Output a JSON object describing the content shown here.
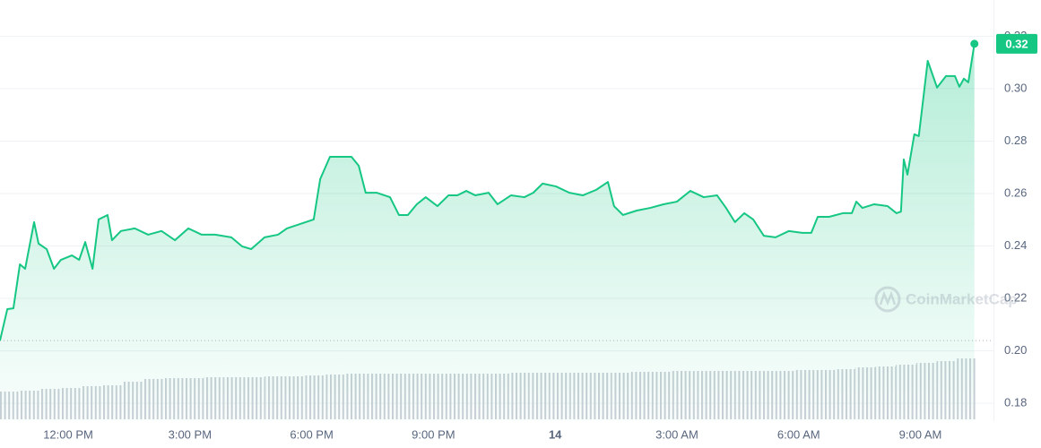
{
  "chart_data": {
    "type": "line",
    "color": "#16c784",
    "grid": true,
    "watermark": "CoinMarketCap",
    "xlim": [
      10.32,
      34.8
    ],
    "ylim": [
      0.1732,
      0.3338
    ],
    "xticks": [
      {
        "value": 12,
        "label": "12:00 PM"
      },
      {
        "value": 15,
        "label": "3:00 PM"
      },
      {
        "value": 18,
        "label": "6:00 PM"
      },
      {
        "value": 21,
        "label": "9:00 PM"
      },
      {
        "value": 24,
        "label": "14"
      },
      {
        "value": 27,
        "label": "3:00 AM"
      },
      {
        "value": 30,
        "label": "6:00 AM"
      },
      {
        "value": 33,
        "label": "9:00 AM"
      }
    ],
    "yticks": [
      0.18,
      {
        "value": 0.2,
        "label": "0.20"
      },
      0.22,
      0.24,
      0.26,
      0.28,
      {
        "value": 0.3,
        "label": "0.30"
      },
      0.32
    ],
    "series": [
      {
        "color": "#16c784",
        "x": [
          10.32,
          10.5,
          10.65,
          10.81,
          10.94,
          11.16,
          11.27,
          11.47,
          11.65,
          11.82,
          12.09,
          12.27,
          12.42,
          12.6,
          12.75,
          12.97,
          13.08,
          13.3,
          13.64,
          13.97,
          14.3,
          14.63,
          14.96,
          15.29,
          15.62,
          16.02,
          16.29,
          16.51,
          16.84,
          17.17,
          17.39,
          17.72,
          18.05,
          18.21,
          18.45,
          18.67,
          18.98,
          19.16,
          19.33,
          19.6,
          19.93,
          20.15,
          20.37,
          20.59,
          20.81,
          21.1,
          21.37,
          21.59,
          21.81,
          22.03,
          22.36,
          22.58,
          22.91,
          23.24,
          23.46,
          23.69,
          24.02,
          24.35,
          24.68,
          25.01,
          25.3,
          25.45,
          25.67,
          26.01,
          26.34,
          26.67,
          27.0,
          27.33,
          27.66,
          27.99,
          28.21,
          28.43,
          28.66,
          28.88,
          29.14,
          29.43,
          29.76,
          30.09,
          30.31,
          30.47,
          30.75,
          31.09,
          31.31,
          31.42,
          31.57,
          31.86,
          32.19,
          32.41,
          32.52,
          32.59,
          32.68,
          32.85,
          32.96,
          33.18,
          33.41,
          33.63,
          33.85,
          33.96,
          34.07,
          34.18,
          34.33
        ],
        "values": [
          0.2039,
          0.2159,
          0.2162,
          0.233,
          0.2313,
          0.2491,
          0.2409,
          0.2388,
          0.2313,
          0.2347,
          0.2364,
          0.2347,
          0.2415,
          0.2313,
          0.2501,
          0.2518,
          0.2422,
          0.2457,
          0.2467,
          0.2443,
          0.2457,
          0.2422,
          0.2467,
          0.2443,
          0.2443,
          0.2433,
          0.2398,
          0.2388,
          0.2433,
          0.2443,
          0.2467,
          0.2484,
          0.2501,
          0.2655,
          0.274,
          0.274,
          0.274,
          0.2706,
          0.2603,
          0.2603,
          0.2586,
          0.2518,
          0.2518,
          0.2559,
          0.2586,
          0.2552,
          0.2593,
          0.2593,
          0.261,
          0.2593,
          0.2603,
          0.2559,
          0.2593,
          0.2586,
          0.2603,
          0.2638,
          0.2627,
          0.2603,
          0.2593,
          0.2614,
          0.2644,
          0.2552,
          0.2518,
          0.2535,
          0.2545,
          0.2559,
          0.2569,
          0.261,
          0.2586,
          0.2593,
          0.2545,
          0.2491,
          0.2525,
          0.2501,
          0.2439,
          0.2433,
          0.2457,
          0.245,
          0.245,
          0.2511,
          0.2511,
          0.2525,
          0.2525,
          0.2569,
          0.2545,
          0.2559,
          0.2552,
          0.2525,
          0.2531,
          0.273,
          0.2672,
          0.2826,
          0.2819,
          0.3106,
          0.3004,
          0.3048,
          0.3048,
          0.3007,
          0.3038,
          0.3024,
          0.3171
        ],
        "value_labels": [
          null,
          null,
          null,
          null,
          null,
          null,
          null,
          null,
          null,
          null,
          null,
          null,
          null,
          null,
          null,
          null,
          null,
          null,
          null,
          null,
          null,
          null,
          null,
          null,
          null,
          null,
          null,
          null,
          null,
          null,
          null,
          null,
          null,
          null,
          null,
          null,
          null,
          null,
          null,
          null,
          null,
          null,
          null,
          null,
          null,
          null,
          null,
          null,
          null,
          null,
          null,
          null,
          null,
          null,
          null,
          null,
          null,
          null,
          null,
          null,
          null,
          null,
          null,
          null,
          null,
          null,
          null,
          null,
          null,
          null,
          null,
          null,
          null,
          null,
          null,
          null,
          null,
          null,
          null,
          null,
          null,
          null,
          null,
          null,
          null,
          null,
          null,
          null,
          null,
          null,
          null,
          null,
          null,
          null,
          null,
          null,
          null,
          null,
          null,
          null,
          "0.32"
        ]
      }
    ],
    "volume": {
      "color": "#c9ced6",
      "vlim": [
        0,
        100
      ],
      "values": [
        31,
        32,
        34,
        35,
        37,
        38,
        42,
        45,
        46,
        46,
        47,
        47,
        47,
        48,
        48,
        49,
        50,
        51,
        51,
        51,
        51,
        51,
        51,
        51,
        51,
        52,
        52,
        52,
        52,
        52,
        52,
        53,
        53,
        54,
        54,
        54,
        54,
        54,
        54,
        55,
        55,
        56,
        58,
        59,
        61,
        63,
        65,
        68
      ]
    }
  }
}
